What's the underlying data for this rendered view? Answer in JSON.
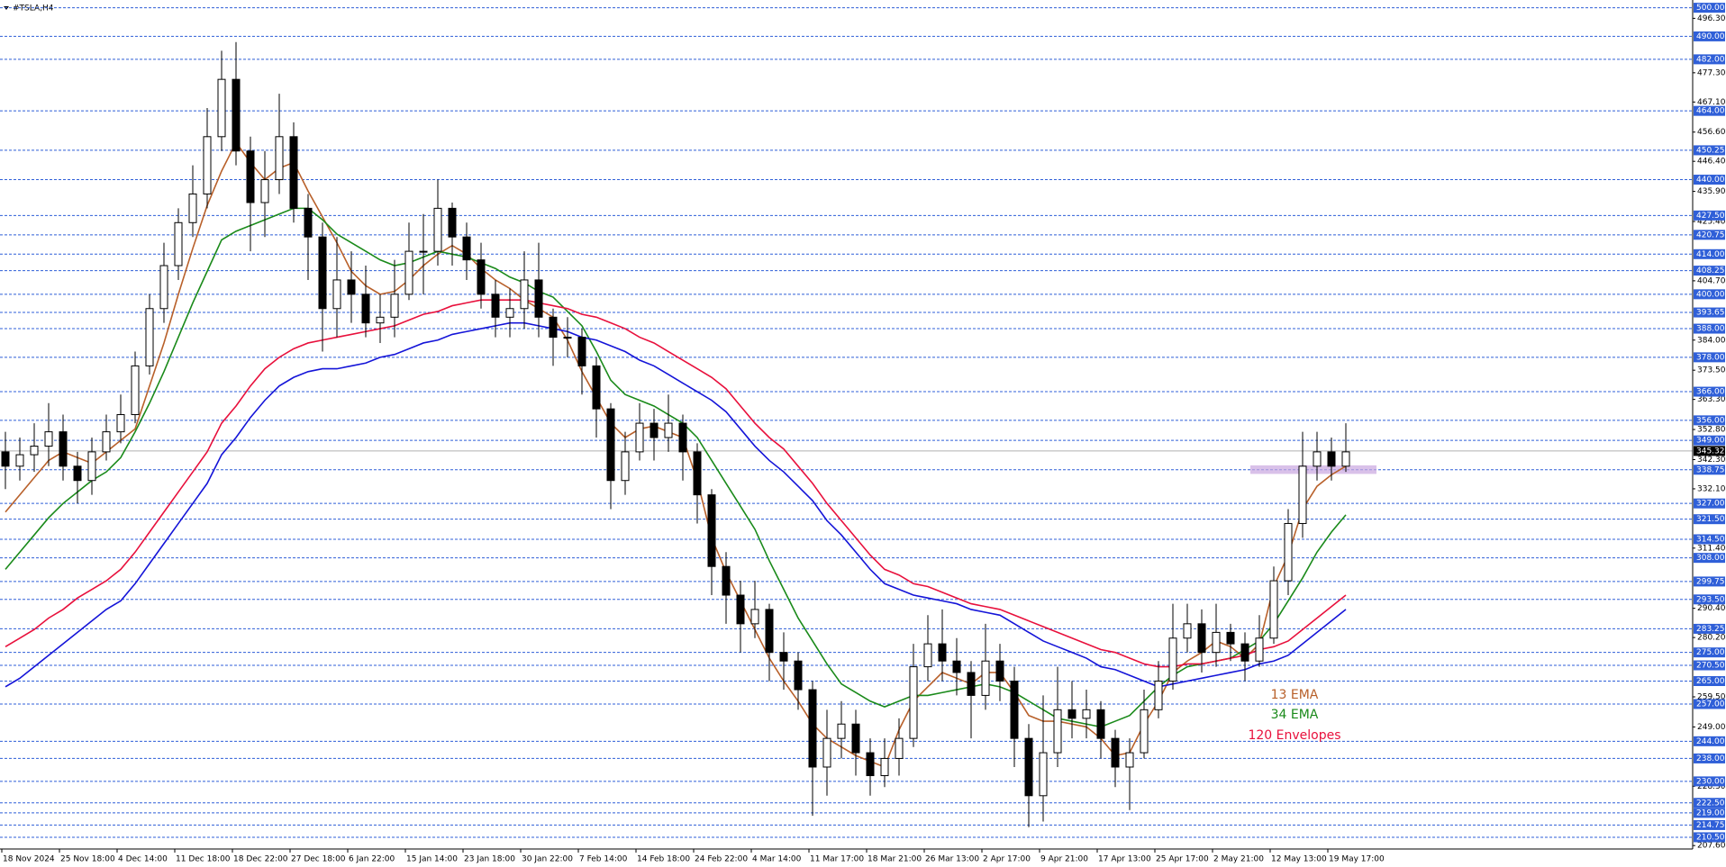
{
  "chart_data": {
    "type": "candlestick",
    "title": "#TSLA,H4",
    "ylim": [
      206.4,
      502.7
    ],
    "x_labels": [
      "18 Nov 2024",
      "25 Nov 18:00",
      "4 Dec 14:00",
      "11 Dec 18:00",
      "18 Dec 22:00",
      "27 Dec 18:00",
      "6 Jan 22:00",
      "15 Jan 14:00",
      "23 Jan 18:00",
      "30 Jan 22:00",
      "7 Feb 14:00",
      "14 Feb 18:00",
      "24 Feb 22:00",
      "4 Mar 14:00",
      "11 Mar 17:00",
      "18 Mar 21:00",
      "26 Mar 13:00",
      "2 Apr 17:00",
      "9 Apr 21:00",
      "17 Apr 13:00",
      "25 Apr 17:00",
      "2 May 21:00",
      "12 May 13:00",
      "19 May 17:00"
    ],
    "candles": {
      "color": "#000000",
      "open": [
        345,
        340,
        344,
        347,
        352,
        340,
        335,
        345,
        352,
        358,
        375,
        395,
        410,
        425,
        435,
        455,
        475,
        450,
        432,
        440,
        455,
        430,
        420,
        395,
        405,
        400,
        390,
        392,
        400,
        415,
        415,
        430,
        420,
        412,
        400,
        392,
        395,
        405,
        392,
        385,
        385,
        375,
        360,
        335,
        345,
        355,
        350,
        355,
        345,
        330,
        305,
        295,
        285,
        290,
        275,
        272,
        262,
        235,
        245,
        250,
        240,
        232,
        238,
        245,
        270,
        278,
        272,
        268,
        260,
        272,
        265,
        245,
        225,
        240,
        255,
        252,
        255,
        245,
        235,
        240,
        255,
        265,
        280,
        285,
        275,
        282,
        278,
        272,
        280,
        300,
        320,
        340,
        345,
        340
      ],
      "high": [
        352,
        350,
        355,
        362,
        358,
        345,
        350,
        358,
        365,
        380,
        400,
        418,
        430,
        445,
        465,
        485,
        488,
        455,
        450,
        470,
        460,
        435,
        425,
        420,
        415,
        410,
        400,
        412,
        425,
        428,
        440,
        432,
        425,
        418,
        405,
        402,
        415,
        418,
        395,
        392,
        388,
        378,
        362,
        352,
        362,
        360,
        365,
        358,
        348,
        332,
        310,
        300,
        300,
        292,
        282,
        275,
        265,
        255,
        258,
        255,
        245,
        245,
        252,
        278,
        288,
        290,
        280,
        272,
        285,
        278,
        270,
        250,
        260,
        270,
        265,
        262,
        258,
        248,
        245,
        262,
        272,
        292,
        292,
        290,
        292,
        285,
        282,
        288,
        305,
        325,
        352,
        352,
        350,
        355
      ],
      "low": [
        332,
        335,
        338,
        340,
        335,
        327,
        330,
        342,
        348,
        355,
        372,
        390,
        405,
        420,
        430,
        450,
        445,
        415,
        420,
        435,
        425,
        405,
        380,
        385,
        390,
        385,
        383,
        385,
        398,
        400,
        410,
        410,
        405,
        395,
        385,
        385,
        388,
        385,
        375,
        378,
        365,
        350,
        325,
        330,
        342,
        342,
        345,
        335,
        320,
        295,
        285,
        275,
        280,
        265,
        262,
        255,
        218,
        225,
        238,
        232,
        225,
        228,
        232,
        242,
        265,
        265,
        260,
        245,
        255,
        258,
        235,
        214,
        216,
        235,
        245,
        245,
        238,
        228,
        220,
        238,
        252,
        262,
        275,
        268,
        270,
        272,
        265,
        270,
        278,
        295,
        315,
        335,
        335,
        338
      ],
      "close": [
        340,
        344,
        347,
        352,
        340,
        335,
        345,
        352,
        358,
        375,
        395,
        410,
        425,
        435,
        455,
        475,
        450,
        432,
        440,
        455,
        430,
        420,
        395,
        405,
        400,
        390,
        392,
        400,
        415,
        415,
        430,
        420,
        412,
        400,
        392,
        395,
        405,
        392,
        385,
        385,
        375,
        360,
        335,
        345,
        355,
        350,
        355,
        345,
        330,
        305,
        295,
        285,
        290,
        275,
        272,
        262,
        235,
        245,
        250,
        240,
        232,
        238,
        245,
        270,
        278,
        272,
        268,
        260,
        272,
        265,
        245,
        225,
        240,
        255,
        252,
        255,
        245,
        235,
        240,
        255,
        265,
        280,
        285,
        275,
        282,
        278,
        272,
        280,
        300,
        320,
        340,
        345,
        340,
        345
      ]
    },
    "series": [
      {
        "name": "13 EMA",
        "color": "#b8602a",
        "values": [
          324,
          330,
          336,
          342,
          345,
          343,
          341,
          345,
          349,
          353,
          368,
          383,
          400,
          416,
          431,
          443,
          453,
          446,
          440,
          444,
          446,
          436,
          427,
          418,
          408,
          403,
          400,
          401,
          405,
          410,
          414,
          417,
          414,
          409,
          405,
          402,
          398,
          395,
          392,
          384,
          373,
          364,
          355,
          350,
          353,
          354,
          352,
          350,
          335,
          315,
          303,
          293,
          283,
          273,
          265,
          258,
          250,
          245,
          242,
          239,
          237,
          235,
          248,
          258,
          263,
          268,
          266,
          264,
          268,
          268,
          261,
          253,
          251,
          251,
          250,
          249,
          245,
          239,
          240,
          250,
          258,
          268,
          272,
          275,
          279,
          277,
          273,
          278,
          298,
          309,
          325,
          333,
          337,
          340
        ]
      },
      {
        "name": "34 EMA",
        "color": "#1a8a1a",
        "values": [
          304,
          310,
          316,
          322,
          327,
          331,
          335,
          338,
          343,
          352,
          362,
          373,
          385,
          397,
          408,
          419,
          422,
          424,
          426,
          428,
          430,
          430,
          426,
          421,
          418,
          415,
          412,
          410,
          411,
          413,
          415,
          414,
          413,
          411,
          409,
          406,
          404,
          401,
          399,
          394,
          389,
          380,
          370,
          365,
          363,
          361,
          358,
          355,
          350,
          342,
          334,
          326,
          318,
          307,
          297,
          287,
          279,
          271,
          264,
          261,
          258,
          256,
          258,
          260,
          260,
          261,
          262,
          263,
          264,
          263,
          261,
          258,
          255,
          252,
          251,
          250,
          249,
          251,
          253,
          258,
          263,
          267,
          270,
          271,
          272,
          273,
          276,
          279,
          285,
          293,
          301,
          310,
          317,
          323
        ]
      },
      {
        "name": "120 Envelopes",
        "color": "#e8103c",
        "values": [
          277,
          280,
          283,
          287,
          290,
          294,
          297,
          300,
          304,
          310,
          317,
          324,
          331,
          338,
          345,
          355,
          361,
          368,
          374,
          378,
          381,
          383,
          384,
          385,
          386,
          387,
          388,
          389,
          391,
          393,
          394,
          396,
          397,
          398,
          398,
          398,
          398,
          397,
          396,
          395,
          393,
          392,
          390,
          388,
          385,
          383,
          380,
          377,
          374,
          371,
          367,
          361,
          355,
          350,
          346,
          340,
          334,
          327,
          321,
          315,
          309,
          304,
          302,
          299,
          298,
          296,
          294,
          292,
          291,
          290,
          288,
          286,
          284,
          282,
          280,
          278,
          276,
          275,
          273,
          271,
          270,
          270,
          271,
          271,
          272,
          273,
          274,
          276,
          277,
          279,
          283,
          287,
          291,
          295
        ],
        "lower": {
          "color": "#1414d8",
          "values": [
            263,
            266,
            270,
            274,
            278,
            282,
            286,
            290,
            293,
            299,
            306,
            313,
            320,
            327,
            334,
            344,
            350,
            357,
            363,
            368,
            371,
            373,
            374,
            374,
            375,
            376,
            378,
            379,
            381,
            383,
            384,
            386,
            387,
            388,
            389,
            390,
            390,
            389,
            388,
            387,
            385,
            384,
            382,
            380,
            377,
            375,
            372,
            369,
            366,
            363,
            359,
            353,
            347,
            342,
            338,
            333,
            328,
            321,
            316,
            310,
            304,
            299,
            297,
            295,
            294,
            293,
            292,
            290,
            289,
            288,
            285,
            282,
            279,
            277,
            275,
            273,
            270,
            269,
            267,
            265,
            263,
            264,
            265,
            266,
            267,
            268,
            269,
            271,
            272,
            274,
            278,
            282,
            286,
            290
          ]
        }
      }
    ],
    "current_price": {
      "value": 345.32,
      "label": "345.32"
    },
    "zone": {
      "low": 337.3,
      "high": 340.3,
      "color": "#c9a6e0"
    },
    "level_color": "#2f5fd8",
    "levels": [
      {
        "value": 500,
        "label": "500.00"
      },
      {
        "value": 490,
        "label": "490.00"
      },
      {
        "value": 482,
        "label": "482.00"
      },
      {
        "value": 464,
        "label": "464.00"
      },
      {
        "value": 450.25,
        "label": "450.25"
      },
      {
        "value": 440,
        "label": "440.00"
      },
      {
        "value": 427.5,
        "label": "427.50"
      },
      {
        "value": 420.75,
        "label": "420.75"
      },
      {
        "value": 414,
        "label": "414.00"
      },
      {
        "value": 408.25,
        "label": "408.25"
      },
      {
        "value": 400,
        "label": "400.00"
      },
      {
        "value": 393.65,
        "label": "393.65"
      },
      {
        "value": 388,
        "label": "388.00"
      },
      {
        "value": 378,
        "label": "378.00"
      },
      {
        "value": 366,
        "label": "366.00"
      },
      {
        "value": 356,
        "label": "356.00"
      },
      {
        "value": 349,
        "label": "349.00"
      },
      {
        "value": 338.75,
        "label": "338.75"
      },
      {
        "value": 327,
        "label": "327.00"
      },
      {
        "value": 321.5,
        "label": "321.50"
      },
      {
        "value": 314.5,
        "label": "314.50"
      },
      {
        "value": 308,
        "label": "308.00"
      },
      {
        "value": 299.75,
        "label": "299.75"
      },
      {
        "value": 293.5,
        "label": "293.50"
      },
      {
        "value": 283.25,
        "label": "283.25"
      },
      {
        "value": 275,
        "label": "275.00"
      },
      {
        "value": 270.5,
        "label": "270.50"
      },
      {
        "value": 265,
        "label": "265.00"
      },
      {
        "value": 257,
        "label": "257.00"
      },
      {
        "value": 244,
        "label": "244.00"
      },
      {
        "value": 238,
        "label": "238.00"
      },
      {
        "value": 230,
        "label": "230.00"
      },
      {
        "value": 222.5,
        "label": "222.50"
      },
      {
        "value": 219,
        "label": "219.00"
      },
      {
        "value": 214.75,
        "label": "214.75"
      },
      {
        "value": 210.5,
        "label": "210.50"
      }
    ],
    "yticks": [
      {
        "value": 496.3,
        "label": "496.30"
      },
      {
        "value": 477.3,
        "label": "477.30"
      },
      {
        "value": 467.1,
        "label": "467.10"
      },
      {
        "value": 456.6,
        "label": "456.60"
      },
      {
        "value": 446.4,
        "label": "446.40"
      },
      {
        "value": 435.9,
        "label": "435.90"
      },
      {
        "value": 425.4,
        "label": "425.40"
      },
      {
        "value": 404.7,
        "label": "404.70"
      },
      {
        "value": 384,
        "label": "384.00"
      },
      {
        "value": 373.5,
        "label": "373.50"
      },
      {
        "value": 363.3,
        "label": "363.30"
      },
      {
        "value": 352.8,
        "label": "352.80"
      },
      {
        "value": 342.3,
        "label": "342.30"
      },
      {
        "value": 332.1,
        "label": "332.10"
      },
      {
        "value": 311.4,
        "label": "311.40"
      },
      {
        "value": 290.4,
        "label": "290.40"
      },
      {
        "value": 280.2,
        "label": "280.20"
      },
      {
        "value": 259.5,
        "label": "259.50"
      },
      {
        "value": 249,
        "label": "249.00"
      },
      {
        "value": 228.3,
        "label": "228.30"
      },
      {
        "value": 207.6,
        "label": "207.60"
      }
    ]
  }
}
